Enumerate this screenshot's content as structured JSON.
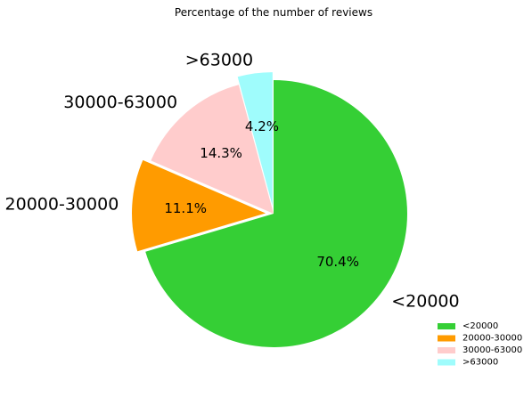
{
  "chart_data": {
    "type": "pie",
    "title": "Percentage of the number of reviews",
    "slices": [
      {
        "label": "<20000",
        "pct_label": "70.4%",
        "value": 70.4,
        "color": "#35cf35",
        "exploded": false
      },
      {
        "label": "20000-30000",
        "pct_label": "11.1%",
        "value": 11.1,
        "color": "#ff9b00",
        "exploded": true
      },
      {
        "label": "30000-63000",
        "pct_label": "14.3%",
        "value": 14.3,
        "color": "#ffcccc",
        "exploded": false
      },
      {
        "label": ">63000",
        "pct_label": "4.2%",
        "value": 4.2,
        "color": "#9ffcfc",
        "exploded": true
      }
    ],
    "start_angle": 90,
    "direction": "clockwise",
    "legend": {
      "placement": "bottom-right",
      "entries": [
        "<20000",
        "20000-30000",
        "30000-63000",
        ">63000"
      ]
    }
  }
}
